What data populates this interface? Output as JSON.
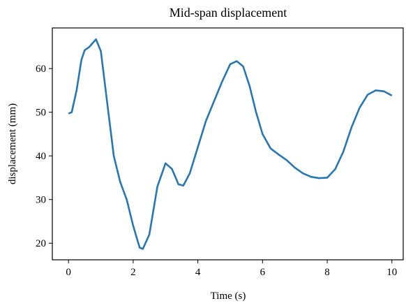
{
  "chart_data": {
    "type": "line",
    "title": "Mid-span displacement",
    "x_label": "Time (s)",
    "y_label": "displacement (mm)",
    "x": [
      0,
      0.1,
      0.25,
      0.4,
      0.5,
      0.65,
      0.85,
      1.0,
      1.2,
      1.4,
      1.6,
      1.8,
      2.0,
      2.2,
      2.3,
      2.5,
      2.75,
      3.0,
      3.2,
      3.4,
      3.55,
      3.75,
      4.0,
      4.25,
      4.5,
      4.75,
      5.0,
      5.2,
      5.4,
      5.6,
      5.8,
      6.0,
      6.25,
      6.5,
      6.75,
      7.0,
      7.25,
      7.5,
      7.75,
      8.0,
      8.25,
      8.5,
      8.75,
      9.0,
      9.25,
      9.5,
      9.75,
      10.0
    ],
    "series": [
      {
        "name": "displacement",
        "color": "#2677b4",
        "values": [
          49.7,
          50,
          55,
          62,
          64.2,
          65,
          66.7,
          64,
          52,
          40,
          34,
          30,
          24,
          19,
          18.7,
          22,
          33,
          38.3,
          37,
          33.5,
          33.2,
          36,
          42,
          48,
          52.5,
          57,
          61,
          61.7,
          60.5,
          56,
          50,
          45,
          41.7,
          40.3,
          39,
          37.3,
          36,
          35.2,
          34.9,
          35,
          37,
          41,
          46.5,
          51,
          54,
          55,
          54.8,
          53.8
        ]
      }
    ],
    "xlim": [
      -0.5,
      10.35
    ],
    "ylim": [
      16.2,
      69.3
    ],
    "xticks": [
      0,
      2,
      4,
      6,
      8,
      10
    ],
    "yticks": [
      20,
      30,
      40,
      50,
      60
    ]
  }
}
